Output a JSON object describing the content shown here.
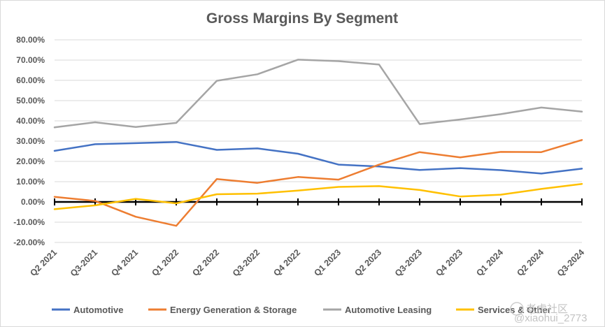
{
  "chart_data": {
    "type": "line",
    "title": "Gross Margins By Segment",
    "xlabel": "",
    "ylabel": "",
    "categories": [
      "Q2 2021",
      "Q3-2021",
      "Q4 2021",
      "Q1 2022",
      "Q2 2022",
      "Q3-2022",
      "Q4 2022",
      "Q1 2023",
      "Q2 2023",
      "Q3-2023",
      "Q4 2023",
      "Q1 2024",
      "Q2 2024",
      "Q3-2024"
    ],
    "ylim": [
      -0.2,
      0.8
    ],
    "yticks": [
      "80.00%",
      "70.00%",
      "60.00%",
      "50.00%",
      "40.00%",
      "30.00%",
      "20.00%",
      "10.00%",
      "0.00%",
      "-10.00%",
      "-20.00%"
    ],
    "grid": "horizontal",
    "legend_position": "bottom",
    "series": [
      {
        "name": "Automotive",
        "color": "#4472c4",
        "values": [
          0.252,
          0.285,
          0.29,
          0.296,
          0.257,
          0.264,
          0.238,
          0.184,
          0.175,
          0.158,
          0.167,
          0.157,
          0.14,
          0.164
        ]
      },
      {
        "name": "Energy Generation & Storage",
        "color": "#ed7d31",
        "values": [
          0.025,
          0.005,
          -0.073,
          -0.118,
          0.113,
          0.094,
          0.123,
          0.11,
          0.184,
          0.246,
          0.22,
          0.247,
          0.246,
          0.306
        ]
      },
      {
        "name": "Automotive Leasing",
        "color": "#a5a5a5",
        "values": [
          0.368,
          0.393,
          0.37,
          0.39,
          0.598,
          0.63,
          0.702,
          0.695,
          0.678,
          0.384,
          0.407,
          0.433,
          0.466,
          0.446
        ]
      },
      {
        "name": "Services & Other",
        "color": "#ffc000",
        "values": [
          -0.036,
          -0.017,
          0.015,
          -0.007,
          0.038,
          0.041,
          0.056,
          0.074,
          0.078,
          0.059,
          0.027,
          0.036,
          0.064,
          0.089
        ]
      }
    ]
  },
  "watermark": {
    "text1": "老虎社区",
    "text2": "@xiaohui_2773"
  }
}
